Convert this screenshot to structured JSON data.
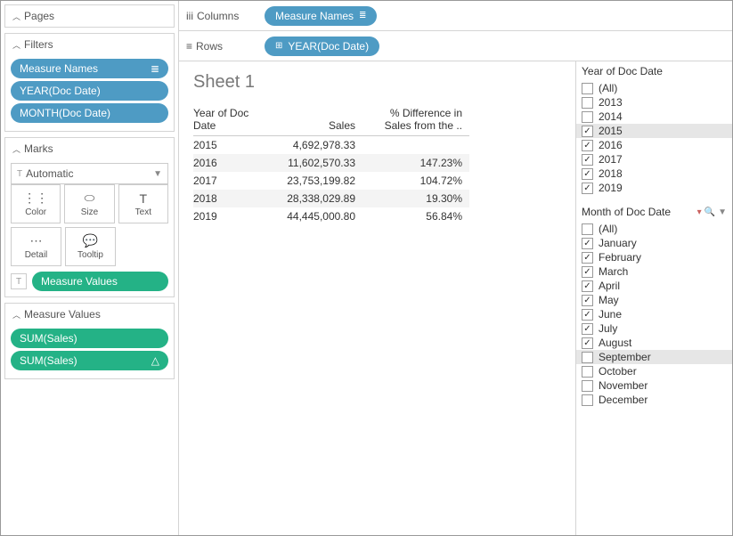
{
  "left": {
    "pages": {
      "title": "Pages"
    },
    "filters": {
      "title": "Filters",
      "pills": [
        {
          "label": "Measure Names",
          "color": "blue",
          "icon": "bars"
        },
        {
          "label": "YEAR(Doc Date)",
          "color": "blue"
        },
        {
          "label": "MONTH(Doc Date)",
          "color": "blue"
        }
      ]
    },
    "marks": {
      "title": "Marks",
      "select": "Automatic",
      "buttons": [
        {
          "label": "Color",
          "icon": "⋮⋮"
        },
        {
          "label": "Size",
          "icon": "⬭"
        },
        {
          "label": "Text",
          "icon": "T"
        },
        {
          "label": "Detail",
          "icon": "⋯"
        },
        {
          "label": "Tooltip",
          "icon": "💬"
        }
      ],
      "footer_pill": {
        "label": "Measure Values"
      }
    },
    "mvalues": {
      "title": "Measure Values",
      "pills": [
        {
          "label": "SUM(Sales)",
          "color": "green"
        },
        {
          "label": "SUM(Sales)",
          "color": "green",
          "icon": "△"
        }
      ]
    }
  },
  "shelves": {
    "columns": {
      "label": "Columns",
      "pill": "Measure Names"
    },
    "rows": {
      "label": "Rows",
      "pill": "YEAR(Doc Date)",
      "prefix": "⊞"
    }
  },
  "sheet": {
    "title": "Sheet 1",
    "columns": [
      "Year of Doc Date",
      "Sales",
      "% Difference in Sales from the .."
    ],
    "rows": [
      {
        "year": "2015",
        "sales": "4,692,978.33",
        "diff": "",
        "alt": false
      },
      {
        "year": "2016",
        "sales": "11,602,570.33",
        "diff": "147.23%",
        "alt": true
      },
      {
        "year": "2017",
        "sales": "23,753,199.82",
        "diff": "104.72%",
        "alt": false
      },
      {
        "year": "2018",
        "sales": "28,338,029.89",
        "diff": "19.30%",
        "alt": true
      },
      {
        "year": "2019",
        "sales": "44,445,000.80",
        "diff": "56.84%",
        "alt": false
      }
    ]
  },
  "rightFilters": {
    "year": {
      "title": "Year of Doc Date",
      "items": [
        {
          "label": "(All)",
          "checked": false,
          "sel": false
        },
        {
          "label": "2013",
          "checked": false,
          "sel": false
        },
        {
          "label": "2014",
          "checked": false,
          "sel": false
        },
        {
          "label": "2015",
          "checked": true,
          "sel": true
        },
        {
          "label": "2016",
          "checked": true,
          "sel": false
        },
        {
          "label": "2017",
          "checked": true,
          "sel": false
        },
        {
          "label": "2018",
          "checked": true,
          "sel": false
        },
        {
          "label": "2019",
          "checked": true,
          "sel": false
        }
      ]
    },
    "month": {
      "title": "Month of Doc Date",
      "items": [
        {
          "label": "(All)",
          "checked": false,
          "sel": false
        },
        {
          "label": "January",
          "checked": true,
          "sel": false
        },
        {
          "label": "February",
          "checked": true,
          "sel": false
        },
        {
          "label": "March",
          "checked": true,
          "sel": false
        },
        {
          "label": "April",
          "checked": true,
          "sel": false
        },
        {
          "label": "May",
          "checked": true,
          "sel": false
        },
        {
          "label": "June",
          "checked": true,
          "sel": false
        },
        {
          "label": "July",
          "checked": true,
          "sel": false
        },
        {
          "label": "August",
          "checked": true,
          "sel": false
        },
        {
          "label": "September",
          "checked": false,
          "sel": true
        },
        {
          "label": "October",
          "checked": false,
          "sel": false
        },
        {
          "label": "November",
          "checked": false,
          "sel": false
        },
        {
          "label": "December",
          "checked": false,
          "sel": false
        }
      ]
    }
  },
  "colors": {
    "blue": "#4e9bc4",
    "green": "#24b286",
    "altRow": "#f4f4f4",
    "border": "#d4d4d4"
  }
}
